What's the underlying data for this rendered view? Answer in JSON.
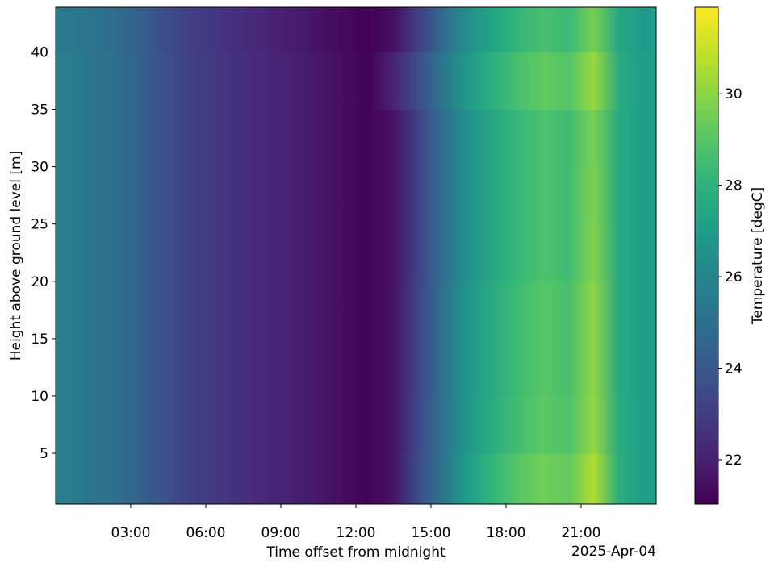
{
  "chart_data": {
    "type": "heatmap",
    "title": "",
    "xlabel": "Time offset from midnight",
    "x_offset_label": "2025-Apr-04",
    "ylabel": "Height above ground level [m]",
    "colorbar_label": "Temperature [degC]",
    "colormap": "viridis",
    "xlim_hours": [
      0,
      24
    ],
    "ylim": [
      0.57,
      43.9
    ],
    "clim": [
      21.03,
      31.89
    ],
    "x_ticks": [
      {
        "hour": 3,
        "label": "03:00"
      },
      {
        "hour": 6,
        "label": "06:00"
      },
      {
        "hour": 9,
        "label": "09:00"
      },
      {
        "hour": 12,
        "label": "12:00"
      },
      {
        "hour": 15,
        "label": "15:00"
      },
      {
        "hour": 18,
        "label": "18:00"
      },
      {
        "hour": 21,
        "label": "21:00"
      }
    ],
    "y_ticks": [
      5,
      10,
      15,
      20,
      25,
      30,
      35,
      40
    ],
    "colorbar_ticks": [
      22,
      24,
      26,
      28,
      30
    ],
    "time_bin_centers_hours": [
      0.5,
      1.5,
      2.5,
      3.5,
      4.5,
      5.5,
      6.5,
      7.5,
      8.5,
      9.5,
      10.5,
      11.5,
      12.5,
      13.5,
      14.5,
      15.5,
      16.5,
      17.5,
      18.5,
      19.5,
      20.5,
      21.5,
      22.5,
      23.5
    ],
    "rows": [
      {
        "height": 2.5,
        "values": [
          25.6,
          25.3,
          24.9,
          24.3,
          23.6,
          23.1,
          22.8,
          22.5,
          22.2,
          22.0,
          21.7,
          21.4,
          21.1,
          21.6,
          23.6,
          25.3,
          27.1,
          28.2,
          29.0,
          29.5,
          29.2,
          30.6,
          27.8,
          27.0
        ]
      },
      {
        "height": 7.5,
        "values": [
          25.6,
          25.3,
          24.9,
          24.3,
          23.6,
          23.1,
          22.8,
          22.5,
          22.2,
          22.0,
          21.7,
          21.4,
          21.1,
          21.6,
          23.4,
          25.2,
          26.8,
          27.8,
          28.6,
          29.1,
          28.8,
          30.1,
          27.7,
          27.0
        ]
      },
      {
        "height": 12.5,
        "values": [
          25.6,
          25.3,
          24.9,
          24.3,
          23.6,
          23.1,
          22.8,
          22.5,
          22.2,
          22.0,
          21.7,
          21.4,
          21.1,
          21.6,
          23.3,
          25.1,
          26.7,
          27.7,
          28.5,
          29.0,
          28.7,
          30.0,
          27.6,
          27.0
        ]
      },
      {
        "height": 17.5,
        "values": [
          25.6,
          25.3,
          24.9,
          24.3,
          23.6,
          23.1,
          22.8,
          22.5,
          22.2,
          22.0,
          21.7,
          21.4,
          21.1,
          21.6,
          23.3,
          25.1,
          26.7,
          27.7,
          28.5,
          29.0,
          28.7,
          30.0,
          27.6,
          27.0
        ]
      },
      {
        "height": 22.5,
        "values": [
          25.6,
          25.3,
          24.9,
          24.3,
          23.6,
          23.1,
          22.8,
          22.5,
          22.2,
          22.0,
          21.7,
          21.4,
          21.1,
          21.6,
          23.2,
          25.0,
          26.5,
          27.5,
          28.3,
          28.8,
          28.5,
          29.8,
          27.6,
          27.0
        ]
      },
      {
        "height": 27.5,
        "values": [
          25.6,
          25.3,
          24.9,
          24.3,
          23.6,
          23.1,
          22.8,
          22.5,
          22.2,
          22.0,
          21.7,
          21.4,
          21.1,
          21.6,
          23.2,
          25.0,
          26.5,
          27.5,
          28.3,
          28.8,
          28.5,
          29.7,
          27.6,
          27.0
        ]
      },
      {
        "height": 32.5,
        "values": [
          25.6,
          25.3,
          24.9,
          24.3,
          23.6,
          23.1,
          22.8,
          22.5,
          22.2,
          22.0,
          21.7,
          21.4,
          21.1,
          21.6,
          23.2,
          25.0,
          26.5,
          27.5,
          28.3,
          28.8,
          28.5,
          29.6,
          27.6,
          27.0
        ]
      },
      {
        "height": 37.5,
        "values": [
          25.6,
          25.3,
          24.9,
          24.3,
          23.6,
          23.1,
          22.8,
          22.5,
          22.2,
          22.0,
          21.7,
          21.4,
          21.1,
          22.1,
          23.6,
          25.4,
          26.9,
          27.9,
          28.7,
          29.2,
          28.9,
          30.2,
          27.7,
          27.0
        ]
      },
      {
        "height": 42.5,
        "values": [
          25.5,
          25.2,
          24.8,
          24.2,
          23.5,
          23.0,
          22.7,
          22.4,
          22.1,
          21.9,
          21.6,
          21.3,
          21.0,
          21.5,
          23.1,
          24.9,
          26.4,
          27.4,
          28.2,
          28.7,
          28.4,
          29.6,
          27.5,
          26.9
        ]
      }
    ]
  }
}
